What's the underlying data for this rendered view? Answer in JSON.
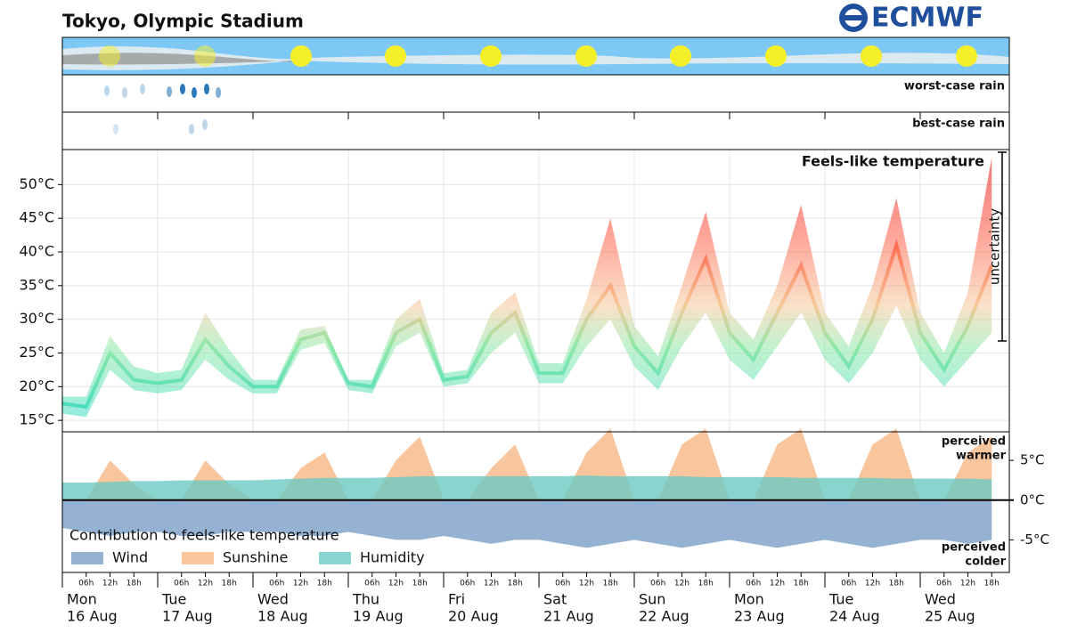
{
  "title": "Tokyo, Olympic Stadium",
  "logo": "ECMWF",
  "rain_labels": {
    "worst": "worst-case rain",
    "best": "best-case rain"
  },
  "timeline": {
    "days": [
      {
        "weekday": "Mon",
        "date": "16 Aug"
      },
      {
        "weekday": "Tue",
        "date": "17 Aug"
      },
      {
        "weekday": "Wed",
        "date": "18 Aug"
      },
      {
        "weekday": "Thu",
        "date": "19 Aug"
      },
      {
        "weekday": "Fri",
        "date": "20 Aug"
      },
      {
        "weekday": "Sat",
        "date": "21 Aug"
      },
      {
        "weekday": "Sun",
        "date": "22 Aug"
      },
      {
        "weekday": "Mon",
        "date": "23 Aug"
      },
      {
        "weekday": "Tue",
        "date": "24 Aug"
      },
      {
        "weekday": "Wed",
        "date": "25 Aug"
      }
    ],
    "hours": [
      "06h",
      "12h",
      "18h"
    ]
  },
  "chart_data": [
    {
      "type": "band",
      "title": "Feels-like temperature",
      "annotation": "uncertainty",
      "x": [
        "16 Aug 00h",
        "16 Aug 06h",
        "16 Aug 12h",
        "16 Aug 18h",
        "17 Aug 00h",
        "17 Aug 06h",
        "17 Aug 12h",
        "17 Aug 18h",
        "18 Aug 00h",
        "18 Aug 06h",
        "18 Aug 12h",
        "18 Aug 18h",
        "19 Aug 00h",
        "19 Aug 06h",
        "19 Aug 12h",
        "19 Aug 18h",
        "20 Aug 00h",
        "20 Aug 06h",
        "20 Aug 12h",
        "20 Aug 18h",
        "21 Aug 00h",
        "21 Aug 06h",
        "21 Aug 12h",
        "21 Aug 18h",
        "22 Aug 00h",
        "22 Aug 06h",
        "22 Aug 12h",
        "22 Aug 18h",
        "23 Aug 00h",
        "23 Aug 06h",
        "23 Aug 12h",
        "23 Aug 18h",
        "24 Aug 00h",
        "24 Aug 06h",
        "24 Aug 12h",
        "24 Aug 18h",
        "25 Aug 00h",
        "25 Aug 06h",
        "25 Aug 12h",
        "25 Aug 18h"
      ],
      "values": [
        17.5,
        17,
        25,
        21,
        20.5,
        21,
        27,
        23,
        20,
        20,
        27,
        28,
        20.5,
        20,
        28,
        30,
        21,
        21.5,
        28,
        31,
        22,
        22,
        30,
        35,
        26,
        22,
        31,
        39,
        28,
        24,
        31,
        38,
        28,
        23,
        30,
        41,
        28,
        22.5,
        29,
        38
      ],
      "low": [
        16,
        15.5,
        22.5,
        19.5,
        19,
        19.5,
        24,
        21,
        19,
        19,
        25.5,
        26.5,
        19.5,
        19,
        26,
        28,
        20,
        20.5,
        25,
        28,
        20.5,
        20.5,
        26,
        30,
        23,
        19.5,
        26,
        31,
        24,
        21,
        26,
        31,
        24,
        20.5,
        25,
        32,
        24,
        20,
        24,
        28
      ],
      "high": [
        18.5,
        18.5,
        27.5,
        23,
        22,
        22.5,
        31,
        25.5,
        21,
        21,
        28.5,
        29,
        21,
        21,
        30,
        33,
        22,
        22.5,
        31,
        34,
        23.5,
        23.5,
        33,
        45,
        29,
        24.5,
        35,
        46,
        31,
        27,
        35,
        47,
        31,
        26,
        35,
        48,
        31,
        25,
        34,
        54
      ],
      "ylim": [
        13.3,
        55.2
      ],
      "yticks": [
        {
          "value": 15,
          "label": "15°C"
        },
        {
          "value": 20,
          "label": "20°C"
        },
        {
          "value": 25,
          "label": "25°C"
        },
        {
          "value": 30,
          "label": "30°C"
        },
        {
          "value": 35,
          "label": "35°C"
        },
        {
          "value": 40,
          "label": "40°C"
        },
        {
          "value": 45,
          "label": "45°C"
        },
        {
          "value": 50,
          "label": "50°C"
        }
      ],
      "grid": true
    },
    {
      "type": "area",
      "labels": {
        "warmer": [
          "perceived",
          "warmer"
        ],
        "colder": [
          "perceived",
          "colder"
        ]
      },
      "legend_title": "Contribution to feels-like temperature",
      "legend": "bottom-left",
      "series": [
        {
          "name": "Wind",
          "color": "#7b9fc8",
          "values": [
            -3.5,
            -4,
            -4.5,
            -4,
            -4,
            -4.5,
            -4.5,
            -4,
            -4,
            -4,
            -4.5,
            -4.5,
            -4,
            -4.5,
            -5,
            -5,
            -4.5,
            -5,
            -5.5,
            -5,
            -5,
            -5.5,
            -6,
            -5.5,
            -5,
            -5.5,
            -6,
            -5.5,
            -5,
            -5.5,
            -6,
            -5.5,
            -5,
            -5.5,
            -6,
            -5.5,
            -5,
            -5,
            -5.5,
            -5
          ]
        },
        {
          "name": "Sunshine",
          "color": "#f7b684",
          "values": [
            0,
            0,
            5,
            2,
            0,
            0,
            5,
            2,
            0,
            0,
            4,
            6,
            0,
            0,
            5,
            8,
            0,
            0,
            4,
            7,
            0,
            0,
            6,
            9,
            0,
            0,
            7,
            9,
            0,
            0,
            7,
            9,
            0,
            0,
            7,
            9,
            0,
            0,
            6,
            8
          ]
        },
        {
          "name": "Humidity",
          "color": "#6cc9c3",
          "values": [
            2.2,
            2.2,
            2.3,
            2.4,
            2.4,
            2.5,
            2.5,
            2.5,
            2.5,
            2.6,
            2.7,
            2.8,
            2.8,
            2.8,
            2.9,
            3,
            3,
            3,
            3,
            3,
            3,
            3,
            3.1,
            3,
            3,
            3,
            3,
            2.9,
            2.9,
            2.9,
            2.9,
            2.8,
            2.8,
            2.8,
            2.8,
            2.7,
            2.7,
            2.7,
            2.7,
            2.6
          ]
        }
      ],
      "ylim": [
        -9.1,
        8.6
      ],
      "yticks": [
        {
          "value": 5,
          "label": "5°C"
        },
        {
          "value": 0,
          "label": "0°C"
        },
        {
          "value": -5,
          "label": "-5°C"
        }
      ]
    }
  ]
}
